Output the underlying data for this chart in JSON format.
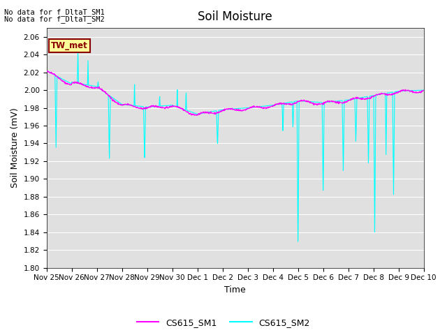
{
  "title": "Soil Moisture",
  "ylabel": "Soil Moisture (mV)",
  "xlabel": "Time",
  "ylim": [
    1.8,
    2.07
  ],
  "yticks": [
    1.8,
    1.82,
    1.84,
    1.86,
    1.88,
    1.9,
    1.92,
    1.94,
    1.96,
    1.98,
    2.0,
    2.02,
    2.04,
    2.06
  ],
  "xtick_labels": [
    "Nov 25",
    "Nov 26",
    "Nov 27",
    "Nov 28",
    "Nov 29",
    "Nov 30",
    "Dec 1",
    "Dec 2",
    "Dec 3",
    "Dec 4",
    "Dec 5",
    "Dec 6",
    "Dec 7",
    "Dec 8",
    "Dec 9",
    "Dec 10"
  ],
  "sm1_color": "#FF00FF",
  "sm2_color": "#00FFFF",
  "sm1_label": "CS615_SM1",
  "sm2_label": "CS615_SM2",
  "tw_met_label": "TW_met",
  "no_data_text1": "No data for f_DltaT_SM1",
  "no_data_text2": "No data for f_DltaT_SM2",
  "bg_color": "#E0E0E0",
  "fig_bg": "#FFFFFF",
  "title_fontsize": 12,
  "axis_fontsize": 9,
  "tick_fontsize": 7.5
}
